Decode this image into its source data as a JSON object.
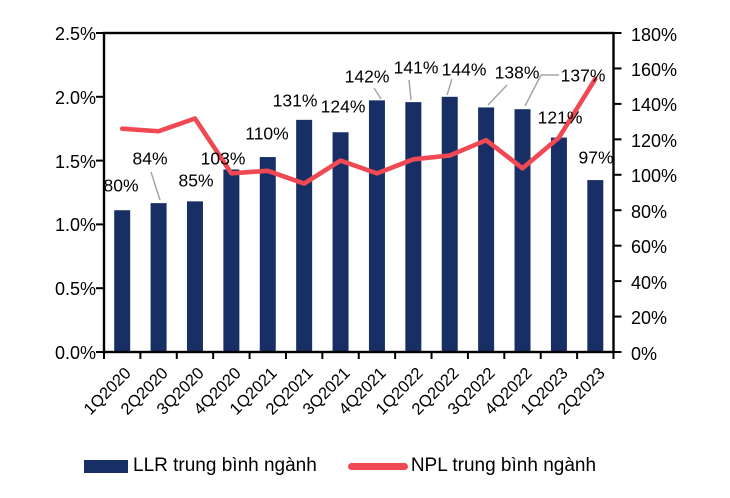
{
  "chart_data": {
    "type": "combo-bar-line",
    "title": "",
    "categories": [
      "1Q2020",
      "2Q2020",
      "3Q2020",
      "4Q2020",
      "1Q2021",
      "2Q2021",
      "3Q2021",
      "4Q2021",
      "1Q2022",
      "2Q2022",
      "3Q2022",
      "4Q2022",
      "1Q2023",
      "2Q2023"
    ],
    "series": [
      {
        "name": "LLR trung bình ngành",
        "type": "bar",
        "axis": "right",
        "unit": "%",
        "color": "#182f66",
        "values": [
          80,
          84,
          85,
          103,
          110,
          131,
          124,
          142,
          141,
          144,
          138,
          137,
          121,
          97
        ]
      },
      {
        "name": "NPL trung bình ngành",
        "type": "line",
        "axis": "left",
        "unit": "%",
        "color": "#f04953",
        "values": [
          1.75,
          1.73,
          1.83,
          1.4,
          1.42,
          1.32,
          1.5,
          1.4,
          1.51,
          1.54,
          1.66,
          1.44,
          1.68,
          2.14
        ]
      }
    ],
    "left_axis": {
      "min": 0,
      "max": 2.5,
      "tick_step": 0.5,
      "tick_labels": [
        "0.0%",
        "0.5%",
        "1.0%",
        "1.5%",
        "2.0%",
        "2.5%"
      ]
    },
    "right_axis": {
      "min": 0,
      "max": 180,
      "tick_step": 20,
      "tick_labels": [
        "0%",
        "20%",
        "40%",
        "60%",
        "80%",
        "100%",
        "120%",
        "140%",
        "160%",
        "180%"
      ]
    },
    "grid": "off",
    "legend_position": "bottom",
    "leader_color": "#a6a6a6",
    "bar_labels": [
      {
        "text": "80%",
        "x": 121,
        "y": 186
      },
      {
        "text": "84%",
        "x": 150,
        "y": 159,
        "leader": [
          [
            151,
            172
          ],
          [
            160,
            200
          ]
        ]
      },
      {
        "text": "85%",
        "x": 196,
        "y": 181
      },
      {
        "text": "103%",
        "x": 223,
        "y": 159
      },
      {
        "text": "110%",
        "x": 267,
        "y": 134
      },
      {
        "text": "131%",
        "x": 295,
        "y": 101
      },
      {
        "text": "124%",
        "x": 343,
        "y": 107
      },
      {
        "text": "142%",
        "x": 367,
        "y": 77,
        "leader": [
          [
            374,
            88
          ],
          [
            381,
            99
          ]
        ]
      },
      {
        "text": "141%",
        "x": 416,
        "y": 68,
        "leader": [
          [
            409,
            80
          ],
          [
            411,
            100
          ]
        ]
      },
      {
        "text": "144%",
        "x": 464,
        "y": 70,
        "leader": [
          [
            452,
            79
          ],
          [
            447,
            95
          ]
        ]
      },
      {
        "text": "138%",
        "x": 517,
        "y": 73,
        "leader": [
          [
            507,
            85
          ],
          [
            488,
            105
          ]
        ]
      },
      {
        "text": "137%",
        "x": 583,
        "y": 76,
        "leader": [
          [
            559,
            75
          ],
          [
            541,
            75
          ],
          [
            525,
            106
          ]
        ]
      },
      {
        "text": "121%",
        "x": 560,
        "y": 118
      },
      {
        "text": "97%",
        "x": 596,
        "y": 158
      }
    ]
  },
  "legend": {
    "items": [
      {
        "label": "LLR trung bình ngành",
        "marker": "bar-swatch",
        "color": "#182f66"
      },
      {
        "label": "NPL trung bình ngành",
        "marker": "line-swatch",
        "color": "#f04953"
      }
    ]
  }
}
